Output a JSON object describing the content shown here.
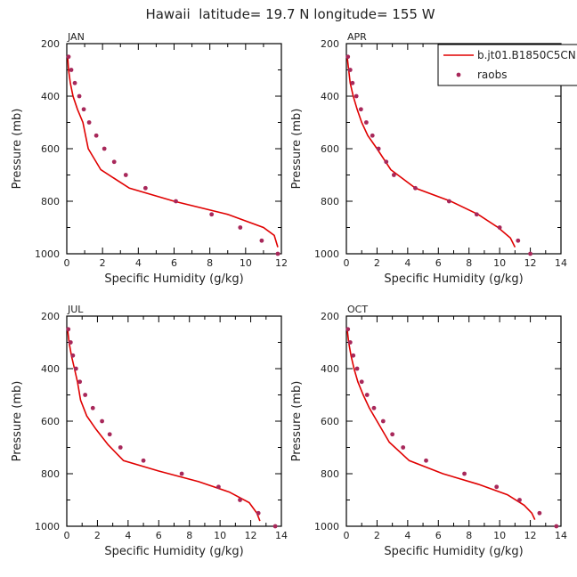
{
  "figure_title": "Hawaii  latitude= 19.7 N longitude= 155 W",
  "legend": {
    "model_label": "b.jt01.B1850C5CN",
    "obs_label": "raobs"
  },
  "colors": {
    "model_line": "#e00000",
    "obs_marker": "#a8285a"
  },
  "chart_data": [
    {
      "type": "line",
      "title": "JAN",
      "xlabel": "Specific Humidity (g/kg)",
      "ylabel": "Pressure (mb)",
      "xlim": [
        0,
        12
      ],
      "ylim": [
        1000,
        200
      ],
      "y_inverted": true,
      "xticks": [
        0,
        2,
        4,
        6,
        8,
        10,
        12
      ],
      "yticks": [
        200,
        400,
        600,
        800,
        1000
      ],
      "series": [
        {
          "name": "b.jt01.B1850C5CN",
          "style": "line",
          "x": [
            0.05,
            0.1,
            0.2,
            0.35,
            0.6,
            0.9,
            1.2,
            1.9,
            3.5,
            6.0,
            9.0,
            11.0,
            11.6,
            11.8
          ],
          "y": [
            250,
            300,
            350,
            400,
            450,
            500,
            600,
            680,
            750,
            800,
            850,
            900,
            930,
            975
          ]
        },
        {
          "name": "raobs",
          "style": "marker",
          "x": [
            0.1,
            0.25,
            0.45,
            0.7,
            0.95,
            1.25,
            1.65,
            2.1,
            2.65,
            3.3,
            4.4,
            6.1,
            8.1,
            9.7,
            10.9,
            11.8
          ],
          "y": [
            250,
            300,
            350,
            400,
            450,
            500,
            550,
            600,
            650,
            700,
            750,
            800,
            850,
            900,
            950,
            1000
          ]
        }
      ]
    },
    {
      "type": "line",
      "title": "APR",
      "xlabel": "Specific Humidity (g/kg)",
      "ylabel": "Pressure (mb)",
      "xlim": [
        0,
        14
      ],
      "ylim": [
        1000,
        200
      ],
      "y_inverted": true,
      "xticks": [
        0,
        2,
        4,
        6,
        8,
        10,
        12,
        14
      ],
      "yticks": [
        200,
        400,
        600,
        800,
        1000
      ],
      "series": [
        {
          "name": "b.jt01.B1850C5CN",
          "style": "line",
          "x": [
            0.05,
            0.15,
            0.25,
            0.45,
            0.7,
            1.0,
            1.4,
            2.0,
            2.9,
            4.5,
            6.8,
            8.6,
            9.9,
            10.7,
            11.0
          ],
          "y": [
            250,
            300,
            350,
            400,
            450,
            500,
            550,
            600,
            680,
            750,
            800,
            850,
            900,
            940,
            975
          ]
        },
        {
          "name": "raobs",
          "style": "marker",
          "x": [
            0.1,
            0.25,
            0.4,
            0.65,
            0.95,
            1.3,
            1.7,
            2.1,
            2.6,
            3.1,
            4.5,
            6.7,
            8.5,
            10.0,
            11.2,
            12.0
          ],
          "y": [
            250,
            300,
            350,
            400,
            450,
            500,
            550,
            600,
            650,
            700,
            750,
            800,
            850,
            900,
            950,
            1000
          ]
        }
      ]
    },
    {
      "type": "line",
      "title": "JUL",
      "xlabel": "Specific Humidity (g/kg)",
      "ylabel": "Pressure (mb)",
      "xlim": [
        0,
        14
      ],
      "ylim": [
        1000,
        200
      ],
      "y_inverted": true,
      "xticks": [
        0,
        2,
        4,
        6,
        8,
        10,
        12,
        14
      ],
      "yticks": [
        200,
        400,
        600,
        800,
        1000
      ],
      "series": [
        {
          "name": "b.jt01.B1850C5CN",
          "style": "line",
          "x": [
            0.05,
            0.15,
            0.3,
            0.5,
            0.7,
            0.9,
            1.3,
            1.9,
            2.7,
            3.7,
            6.0,
            8.6,
            10.6,
            11.9,
            12.4,
            12.6
          ],
          "y": [
            250,
            300,
            350,
            400,
            450,
            520,
            580,
            630,
            690,
            750,
            790,
            830,
            870,
            910,
            950,
            980
          ]
        },
        {
          "name": "raobs",
          "style": "marker",
          "x": [
            0.1,
            0.25,
            0.4,
            0.6,
            0.85,
            1.2,
            1.7,
            2.3,
            2.8,
            3.5,
            5.0,
            7.5,
            9.9,
            11.3,
            12.5,
            13.6
          ],
          "y": [
            250,
            300,
            350,
            400,
            450,
            500,
            550,
            600,
            650,
            700,
            750,
            800,
            850,
            900,
            950,
            1000
          ]
        }
      ]
    },
    {
      "type": "line",
      "title": "OCT",
      "xlabel": "Specific Humidity (g/kg)",
      "ylabel": "Pressure (mb)",
      "xlim": [
        0,
        14
      ],
      "ylim": [
        1000,
        200
      ],
      "y_inverted": true,
      "xticks": [
        0,
        2,
        4,
        6,
        8,
        10,
        12,
        14
      ],
      "yticks": [
        200,
        400,
        600,
        800,
        1000
      ],
      "series": [
        {
          "name": "b.jt01.B1850C5CN",
          "style": "line",
          "x": [
            0.05,
            0.15,
            0.3,
            0.5,
            0.75,
            1.1,
            1.5,
            2.1,
            2.8,
            4.1,
            6.3,
            8.6,
            10.5,
            11.6,
            12.1,
            12.3
          ],
          "y": [
            250,
            300,
            350,
            400,
            450,
            500,
            550,
            610,
            680,
            750,
            800,
            840,
            880,
            920,
            950,
            975
          ]
        },
        {
          "name": "raobs",
          "style": "marker",
          "x": [
            0.1,
            0.25,
            0.45,
            0.7,
            1.0,
            1.35,
            1.8,
            2.4,
            3.0,
            3.7,
            5.2,
            7.7,
            9.8,
            11.3,
            12.6,
            13.7
          ],
          "y": [
            250,
            300,
            350,
            400,
            450,
            500,
            550,
            600,
            650,
            700,
            750,
            800,
            850,
            900,
            950,
            1000
          ]
        }
      ]
    }
  ]
}
